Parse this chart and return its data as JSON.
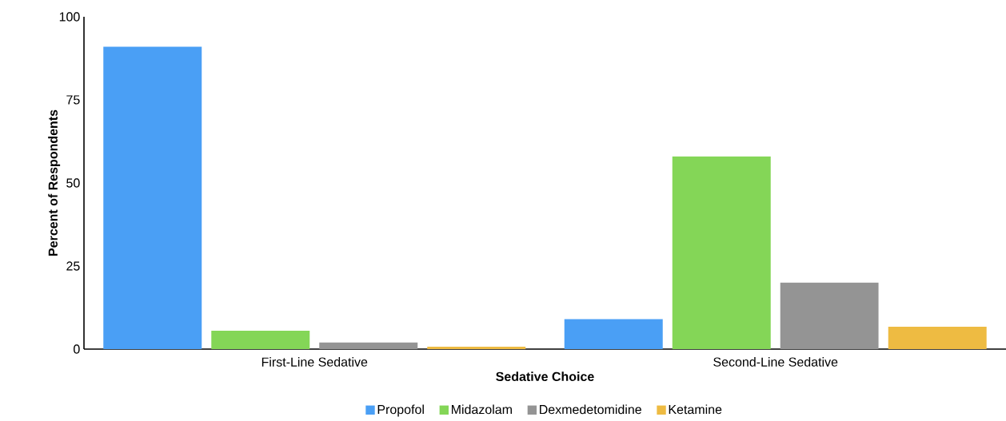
{
  "chart_data": {
    "type": "bar",
    "xlabel": "Sedative Choice",
    "ylabel": "Percent of Respondents",
    "categories": [
      "First-Line Sedative",
      "Second-Line Sedative"
    ],
    "series": [
      {
        "name": "Propofol",
        "color": "#4a9ff5",
        "values": [
          91,
          9
        ]
      },
      {
        "name": "Midazolam",
        "color": "#84d657",
        "values": [
          5.5,
          58
        ]
      },
      {
        "name": "Dexmedetomidine",
        "color": "#949494",
        "values": [
          2,
          20
        ]
      },
      {
        "name": "Ketamine",
        "color": "#eebb42",
        "values": [
          0.7,
          6.7
        ]
      }
    ],
    "ylim": [
      0,
      100
    ],
    "yticks": [
      0,
      25,
      50,
      75,
      100
    ],
    "legend": "bottom",
    "grid": false
  }
}
